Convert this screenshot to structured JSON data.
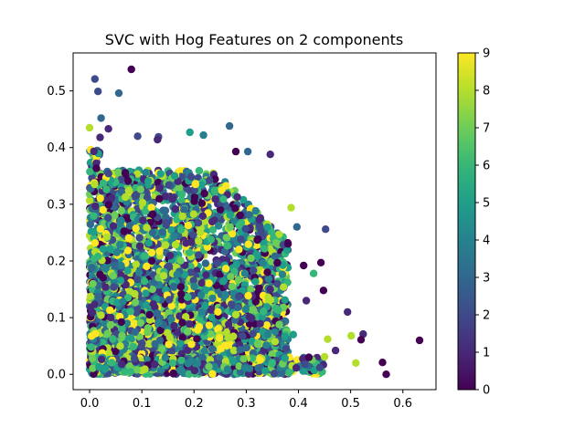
{
  "chart_data": {
    "type": "scatter",
    "title": "SVC with Hog Features on 2 components",
    "xlabel": "",
    "ylabel": "",
    "xlim": [
      -0.0316,
      0.6635
    ],
    "ylim": [
      -0.027,
      0.567
    ],
    "x_ticks": [
      0.0,
      0.1,
      0.2,
      0.3,
      0.4,
      0.5,
      0.6
    ],
    "x_tick_labels": [
      "0.0",
      "0.1",
      "0.2",
      "0.3",
      "0.4",
      "0.5",
      "0.6"
    ],
    "y_ticks": [
      0.0,
      0.1,
      0.2,
      0.3,
      0.4,
      0.5
    ],
    "y_tick_labels": [
      "0.0",
      "0.1",
      "0.2",
      "0.3",
      "0.4",
      "0.5"
    ],
    "grid": false,
    "colormap": "viridis",
    "colorbar": {
      "range": [
        0,
        9
      ],
      "ticks": [
        0,
        1,
        2,
        3,
        4,
        5,
        6,
        7,
        8,
        9
      ],
      "tick_labels": [
        "0",
        "1",
        "2",
        "3",
        "4",
        "5",
        "6",
        "7",
        "8",
        "9"
      ]
    },
    "outlier_points": [
      {
        "x": 0.08,
        "y": 0.538,
        "c": 0
      },
      {
        "x": 0.01,
        "y": 0.521,
        "c": 2
      },
      {
        "x": 0.016,
        "y": 0.499,
        "c": 2
      },
      {
        "x": 0.056,
        "y": 0.496,
        "c": 3
      },
      {
        "x": 0.022,
        "y": 0.452,
        "c": 3
      },
      {
        "x": 0.268,
        "y": 0.438,
        "c": 3
      },
      {
        "x": 0.0,
        "y": 0.435,
        "c": 8
      },
      {
        "x": 0.036,
        "y": 0.433,
        "c": 1
      },
      {
        "x": 0.192,
        "y": 0.427,
        "c": 5
      },
      {
        "x": 0.218,
        "y": 0.422,
        "c": 4
      },
      {
        "x": 0.092,
        "y": 0.42,
        "c": 2
      },
      {
        "x": 0.132,
        "y": 0.419,
        "c": 2
      },
      {
        "x": 0.02,
        "y": 0.418,
        "c": 1
      },
      {
        "x": 0.13,
        "y": 0.414,
        "c": 1
      },
      {
        "x": 0.452,
        "y": 0.256,
        "c": 2
      },
      {
        "x": 0.397,
        "y": 0.26,
        "c": 3
      },
      {
        "x": 0.346,
        "y": 0.388,
        "c": 1
      },
      {
        "x": 0.303,
        "y": 0.393,
        "c": 3
      },
      {
        "x": 0.28,
        "y": 0.393,
        "c": 0
      },
      {
        "x": 0.443,
        "y": 0.197,
        "c": 0
      },
      {
        "x": 0.429,
        "y": 0.178,
        "c": 6
      },
      {
        "x": 0.448,
        "y": 0.148,
        "c": 0
      },
      {
        "x": 0.41,
        "y": 0.192,
        "c": 0
      },
      {
        "x": 0.415,
        "y": 0.13,
        "c": 1
      },
      {
        "x": 0.494,
        "y": 0.11,
        "c": 1
      },
      {
        "x": 0.524,
        "y": 0.071,
        "c": 1
      },
      {
        "x": 0.52,
        "y": 0.061,
        "c": 0
      },
      {
        "x": 0.501,
        "y": 0.068,
        "c": 8
      },
      {
        "x": 0.471,
        "y": 0.042,
        "c": 1
      },
      {
        "x": 0.456,
        "y": 0.062,
        "c": 8
      },
      {
        "x": 0.45,
        "y": 0.031,
        "c": 8
      },
      {
        "x": 0.441,
        "y": 0.012,
        "c": 2
      },
      {
        "x": 0.51,
        "y": 0.02,
        "c": 8
      },
      {
        "x": 0.561,
        "y": 0.021,
        "c": 0
      },
      {
        "x": 0.568,
        "y": 0.0,
        "c": 0
      },
      {
        "x": 0.632,
        "y": 0.06,
        "c": 0
      },
      {
        "x": 0.386,
        "y": 0.294,
        "c": 8
      },
      {
        "x": 0.38,
        "y": 0.23,
        "c": 0
      },
      {
        "x": 0.39,
        "y": 0.07,
        "c": 5
      },
      {
        "x": 0.42,
        "y": 0.03,
        "c": 0
      }
    ],
    "dense_region_note": "bulk of points fill x 0.0-0.38, y 0.0-0.40 with classes 0-9 intermixed"
  }
}
